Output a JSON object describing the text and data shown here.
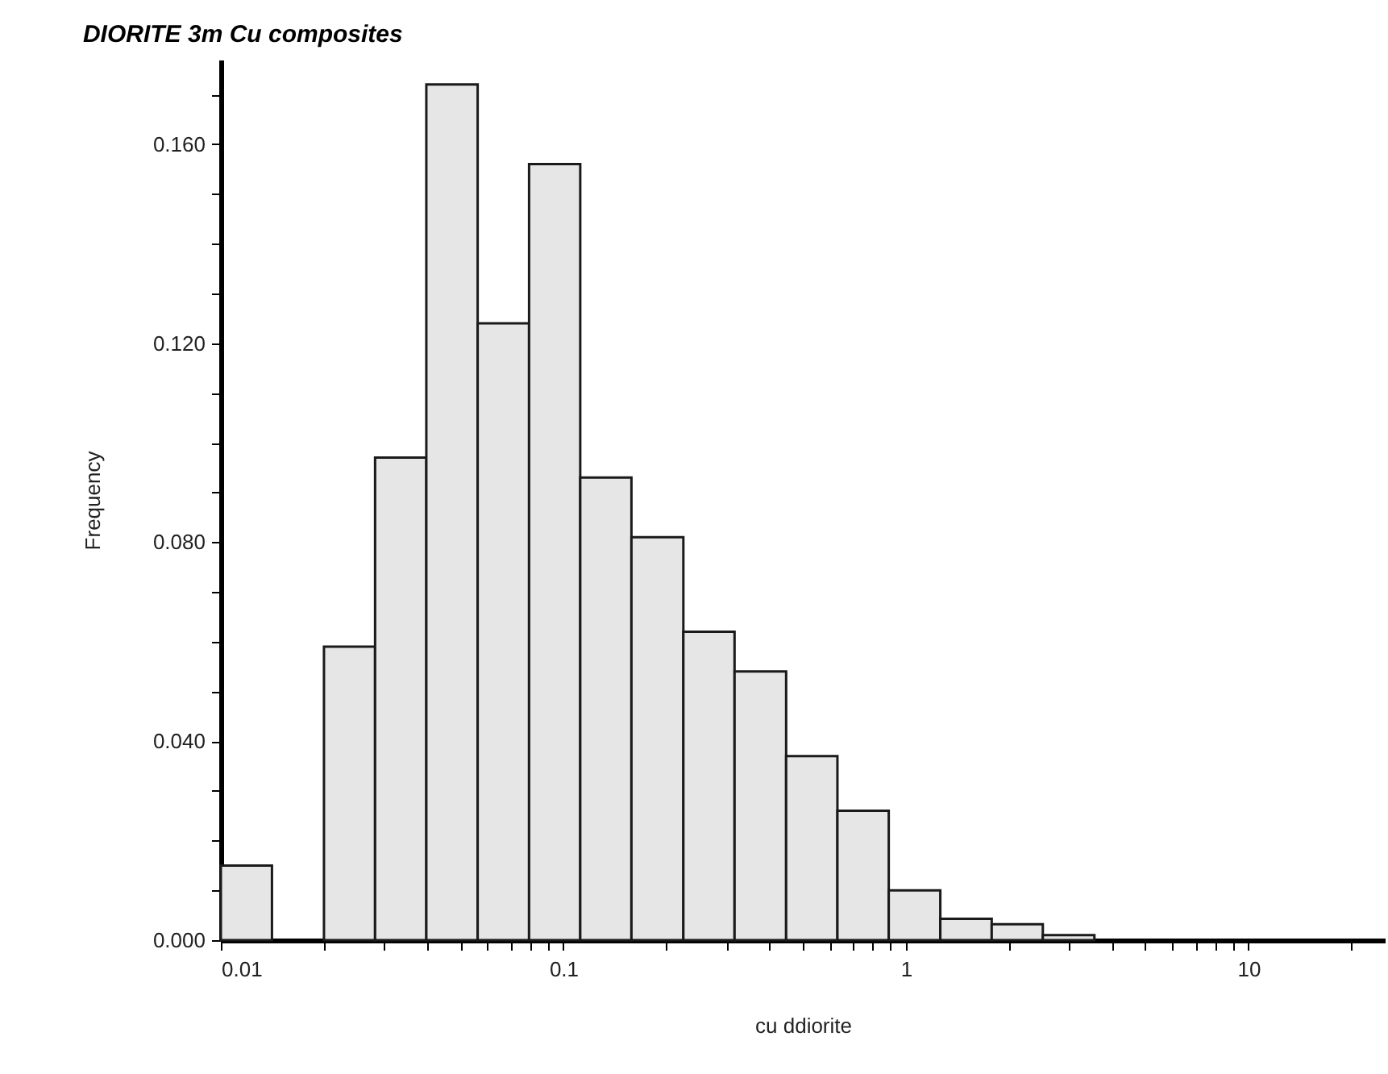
{
  "chart_data": {
    "type": "histogram",
    "title": "DIORITE 3m Cu composites",
    "xlabel": "cu ddiorite",
    "ylabel": "Frequency",
    "bins": [
      0.01,
      0.0141,
      0.02,
      0.0282,
      0.0398,
      0.0562,
      0.0794,
      0.112,
      0.158,
      0.224,
      0.316,
      0.447,
      0.631,
      0.891,
      1.26,
      1.78,
      2.51,
      3.55
    ],
    "values": [
      0.015,
      0,
      0.059,
      0.097,
      0.172,
      0.124,
      0.156,
      0.093,
      0.081,
      0.062,
      0.054,
      0.037,
      0.026,
      0.01,
      0.0043,
      0.0032,
      0.001
    ],
    "color": "#e6e6e6",
    "log": "x",
    "grid": false,
    "xlim": [
      0.01,
      25
    ],
    "ylim": [
      0,
      0.177
    ],
    "xticks": [
      0.01,
      {
        "value": 0.02,
        "label": null
      },
      {
        "value": 0.03,
        "label": null
      },
      {
        "value": 0.04,
        "label": null
      },
      {
        "value": 0.05,
        "label": null
      },
      {
        "value": 0.06,
        "label": null
      },
      {
        "value": 0.07,
        "label": null
      },
      {
        "value": 0.08,
        "label": null
      },
      {
        "value": 0.09,
        "label": null
      },
      0.1,
      {
        "value": 0.2,
        "label": null
      },
      {
        "value": 0.3,
        "label": null
      },
      {
        "value": 0.4,
        "label": null
      },
      {
        "value": 0.5,
        "label": null
      },
      {
        "value": 0.6,
        "label": null
      },
      {
        "value": 0.7,
        "label": null
      },
      {
        "value": 0.8,
        "label": null
      },
      {
        "value": 0.9,
        "label": null
      },
      1,
      {
        "value": 2,
        "label": null
      },
      {
        "value": 3,
        "label": null
      },
      {
        "value": 4,
        "label": null
      },
      {
        "value": 5,
        "label": null
      },
      {
        "value": 6,
        "label": null
      },
      {
        "value": 7,
        "label": null
      },
      {
        "value": 8,
        "label": null
      },
      {
        "value": 9,
        "label": null
      },
      10,
      {
        "value": 20,
        "label": null
      }
    ],
    "yticks": [
      {
        "value": 0,
        "label": "0.000"
      },
      {
        "value": 0.01,
        "label": null
      },
      {
        "value": 0.02,
        "label": null
      },
      {
        "value": 0.03,
        "label": null
      },
      {
        "value": 0.04,
        "label": "0.040"
      },
      {
        "value": 0.05,
        "label": null
      },
      {
        "value": 0.06,
        "label": null
      },
      {
        "value": 0.07,
        "label": null
      },
      {
        "value": 0.08,
        "label": "0.080"
      },
      {
        "value": 0.09,
        "label": null
      },
      {
        "value": 0.1,
        "label": null
      },
      {
        "value": 0.11,
        "label": null
      },
      {
        "value": 0.12,
        "label": "0.120"
      },
      {
        "value": 0.13,
        "label": null
      },
      {
        "value": 0.14,
        "label": null
      },
      {
        "value": 0.15,
        "label": null
      },
      {
        "value": 0.16,
        "label": "0.160"
      },
      {
        "value": 0.17,
        "label": null
      }
    ]
  }
}
